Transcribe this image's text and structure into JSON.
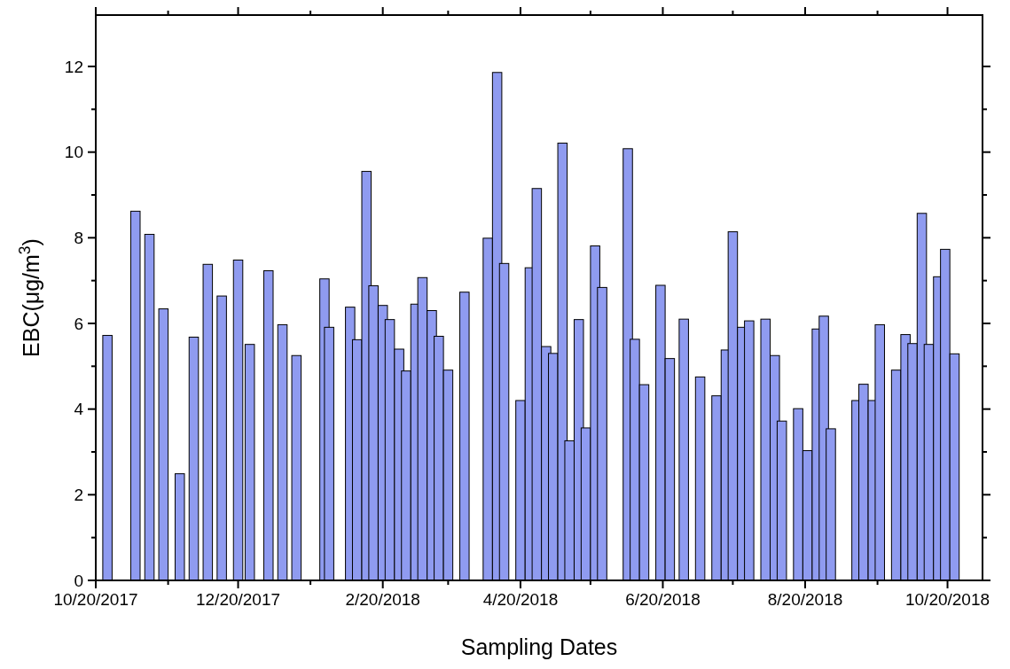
{
  "chart_data": {
    "type": "bar",
    "xlabel": "Sampling Dates",
    "ylabel": "EBC(μg/m$^{3}$)",
    "x": [
      "2017-10-25",
      "2017-11-06",
      "2017-11-12",
      "2017-11-18",
      "2017-11-25",
      "2017-12-01",
      "2017-12-07",
      "2017-12-13",
      "2017-12-20",
      "2017-12-25",
      "2018-01-02",
      "2018-01-08",
      "2018-01-14",
      "2018-01-26",
      "2018-01-28",
      "2018-02-06",
      "2018-02-09",
      "2018-02-13",
      "2018-02-16",
      "2018-02-20",
      "2018-02-23",
      "2018-02-27",
      "2018-03-02",
      "2018-03-06",
      "2018-03-09",
      "2018-03-13",
      "2018-03-16",
      "2018-03-20",
      "2018-03-27",
      "2018-04-06",
      "2018-04-10",
      "2018-04-13",
      "2018-04-20",
      "2018-04-24",
      "2018-04-27",
      "2018-05-01",
      "2018-05-04",
      "2018-05-08",
      "2018-05-11",
      "2018-05-15",
      "2018-05-18",
      "2018-05-22",
      "2018-05-25",
      "2018-06-05",
      "2018-06-08",
      "2018-06-12",
      "2018-06-19",
      "2018-06-23",
      "2018-06-29",
      "2018-07-06",
      "2018-07-13",
      "2018-07-17",
      "2018-07-20",
      "2018-07-24",
      "2018-07-27",
      "2018-08-03",
      "2018-08-07",
      "2018-08-10",
      "2018-08-17",
      "2018-08-21",
      "2018-08-25",
      "2018-08-28",
      "2018-08-31",
      "2018-09-11",
      "2018-09-14",
      "2018-09-18",
      "2018-09-21",
      "2018-09-28",
      "2018-10-02",
      "2018-10-05",
      "2018-10-09",
      "2018-10-12",
      "2018-10-16",
      "2018-10-19",
      "2018-10-23"
    ],
    "series": [
      {
        "color": "#8f9bf0",
        "values": [
          5.72,
          8.62,
          8.08,
          6.34,
          2.49,
          5.68,
          7.38,
          6.64,
          7.48,
          5.51,
          7.23,
          5.97,
          5.25,
          7.04,
          5.91,
          6.38,
          5.62,
          9.55,
          6.88,
          6.42,
          6.09,
          5.4,
          4.89,
          6.45,
          7.07,
          6.3,
          5.7,
          4.91,
          6.73,
          7.99,
          11.86,
          7.4,
          4.2,
          7.3,
          9.15,
          5.46,
          5.3,
          10.21,
          3.26,
          6.09,
          3.56,
          7.81,
          6.84,
          10.08,
          5.63,
          4.57,
          6.89,
          5.18,
          6.1,
          4.75,
          4.31,
          5.38,
          8.14,
          5.91,
          6.06,
          6.1,
          5.25,
          3.72,
          4.01,
          3.03,
          5.87,
          6.17,
          3.54,
          4.2,
          4.58,
          4.2,
          5.97,
          4.91,
          5.74,
          5.53,
          8.57,
          5.51,
          7.09,
          7.73,
          5.29
        ]
      }
    ],
    "xlim": [
      "2017-10-20",
      "2018-11-04"
    ],
    "xticks": [
      {
        "value": "2017-10-20",
        "label": "10/20/2017"
      },
      {
        "value": "2017-11-20",
        "label": null
      },
      {
        "value": "2017-12-20",
        "label": "12/20/2017"
      },
      {
        "value": "2018-01-20",
        "label": null
      },
      {
        "value": "2018-02-20",
        "label": "2/20/2018"
      },
      {
        "value": "2018-03-20",
        "label": null
      },
      {
        "value": "2018-04-20",
        "label": "4/20/2018"
      },
      {
        "value": "2018-05-20",
        "label": null
      },
      {
        "value": "2018-06-20",
        "label": "6/20/2018"
      },
      {
        "value": "2018-07-20",
        "label": null
      },
      {
        "value": "2018-08-20",
        "label": "8/20/2018"
      },
      {
        "value": "2018-09-20",
        "label": null
      },
      {
        "value": "2018-10-20",
        "label": "10/20/2018"
      }
    ],
    "ylim": [
      0,
      13.2
    ],
    "yticks": [
      0,
      {
        "value": 1,
        "label": null
      },
      2,
      {
        "value": 3,
        "label": null
      },
      4,
      {
        "value": 5,
        "label": null
      },
      6,
      {
        "value": 7,
        "label": null
      },
      8,
      {
        "value": 9,
        "label": null
      },
      10,
      {
        "value": 11,
        "label": null
      },
      12
    ]
  }
}
